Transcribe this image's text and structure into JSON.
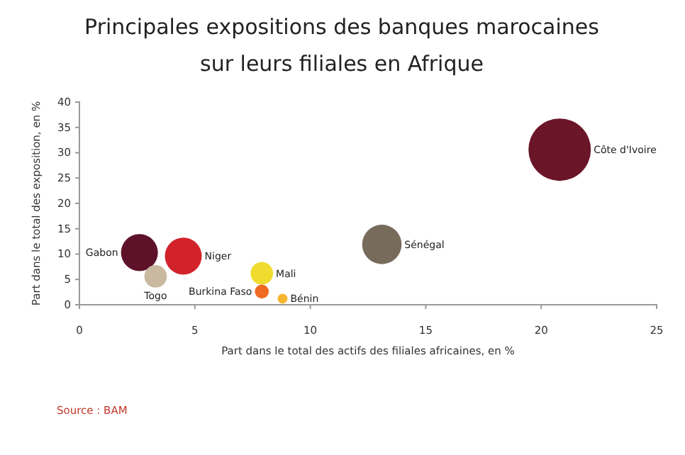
{
  "chart_data": {
    "type": "bubble",
    "title": "Principales expositions des banques marocaines sur leurs filiales en Afrique",
    "xlabel": "Part dans le total des actifs des filiales africaines, en %",
    "ylabel": "Part dans le total des exposition, en %",
    "annotations": [
      "Source : BAM"
    ],
    "xlim": [
      0,
      25
    ],
    "xticks": [
      0,
      5,
      10,
      15,
      20,
      25
    ],
    "ylim": [
      0,
      40
    ],
    "yticks": [
      0,
      5,
      10,
      15,
      20,
      25,
      30,
      35,
      40
    ],
    "grid": false,
    "legend": false,
    "series": [
      {
        "name": "Côte d'Ivoire",
        "color": "#6b1529",
        "x": [
          20.8
        ],
        "values": [
          30.6
        ],
        "sizes": [
          1
        ]
      },
      {
        "name": "Sénégal",
        "color": "#776b5b",
        "x": [
          13.1
        ],
        "values": [
          11.9
        ],
        "sizes": [
          0.4
        ]
      },
      {
        "name": "Gabon",
        "color": "#5e1229",
        "x": [
          2.6
        ],
        "values": [
          10.3
        ],
        "sizes": [
          0.35
        ]
      },
      {
        "name": "Togo",
        "color": "#c8b9a0",
        "x": [
          3.3
        ],
        "values": [
          5.6
        ],
        "sizes": [
          0.13
        ]
      },
      {
        "name": "Niger",
        "color": "#d2232a",
        "x": [
          4.5
        ],
        "values": [
          9.6
        ],
        "sizes": [
          0.35
        ]
      },
      {
        "name": "Mali",
        "color": "#f0dc2e",
        "x": [
          7.9
        ],
        "values": [
          6.2
        ],
        "sizes": [
          0.13
        ]
      },
      {
        "name": "Burkina Faso",
        "color": "#f06a22",
        "x": [
          7.9
        ],
        "values": [
          2.6
        ],
        "sizes": [
          0.05
        ]
      },
      {
        "name": "Bénin",
        "color": "#f5b52e",
        "x": [
          8.8
        ],
        "values": [
          1.2
        ],
        "sizes": [
          0.025
        ]
      }
    ]
  }
}
